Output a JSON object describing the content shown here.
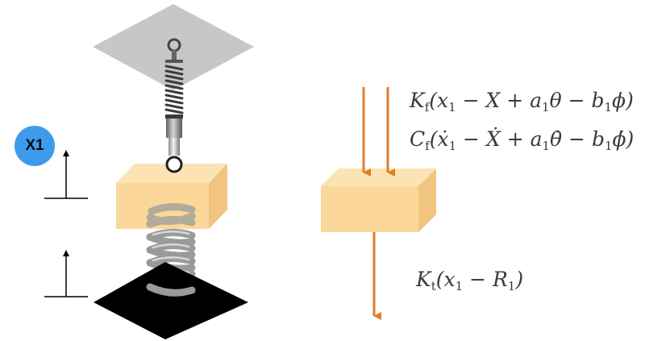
{
  "badge": {
    "label": "X1",
    "color": "#3d9bea"
  },
  "colors": {
    "block": "#fbd79a",
    "block_top": "#fce3b3",
    "block_side": "#f1c47f",
    "arrow": "#e47b2c",
    "ceiling": "#c7c7c7",
    "ground": "#000000",
    "equation_text": "#3a3a3a"
  },
  "equations": {
    "stiffness_force": "K_f(x_1 − X + a_1θ − b_1ϕ)",
    "damping_force": "C_f(ẋ_1 − Ẋ + a_1θ̇ − b_1ϕ̇)",
    "tire_force": "K_t(x_1 − R_1)"
  },
  "icons": {
    "shock_absorber": "shock-absorber-icon",
    "coil_spring": "coil-spring-icon",
    "force_arrow": "arrow-down-icon",
    "displacement_arrow": "arrow-up-icon"
  }
}
